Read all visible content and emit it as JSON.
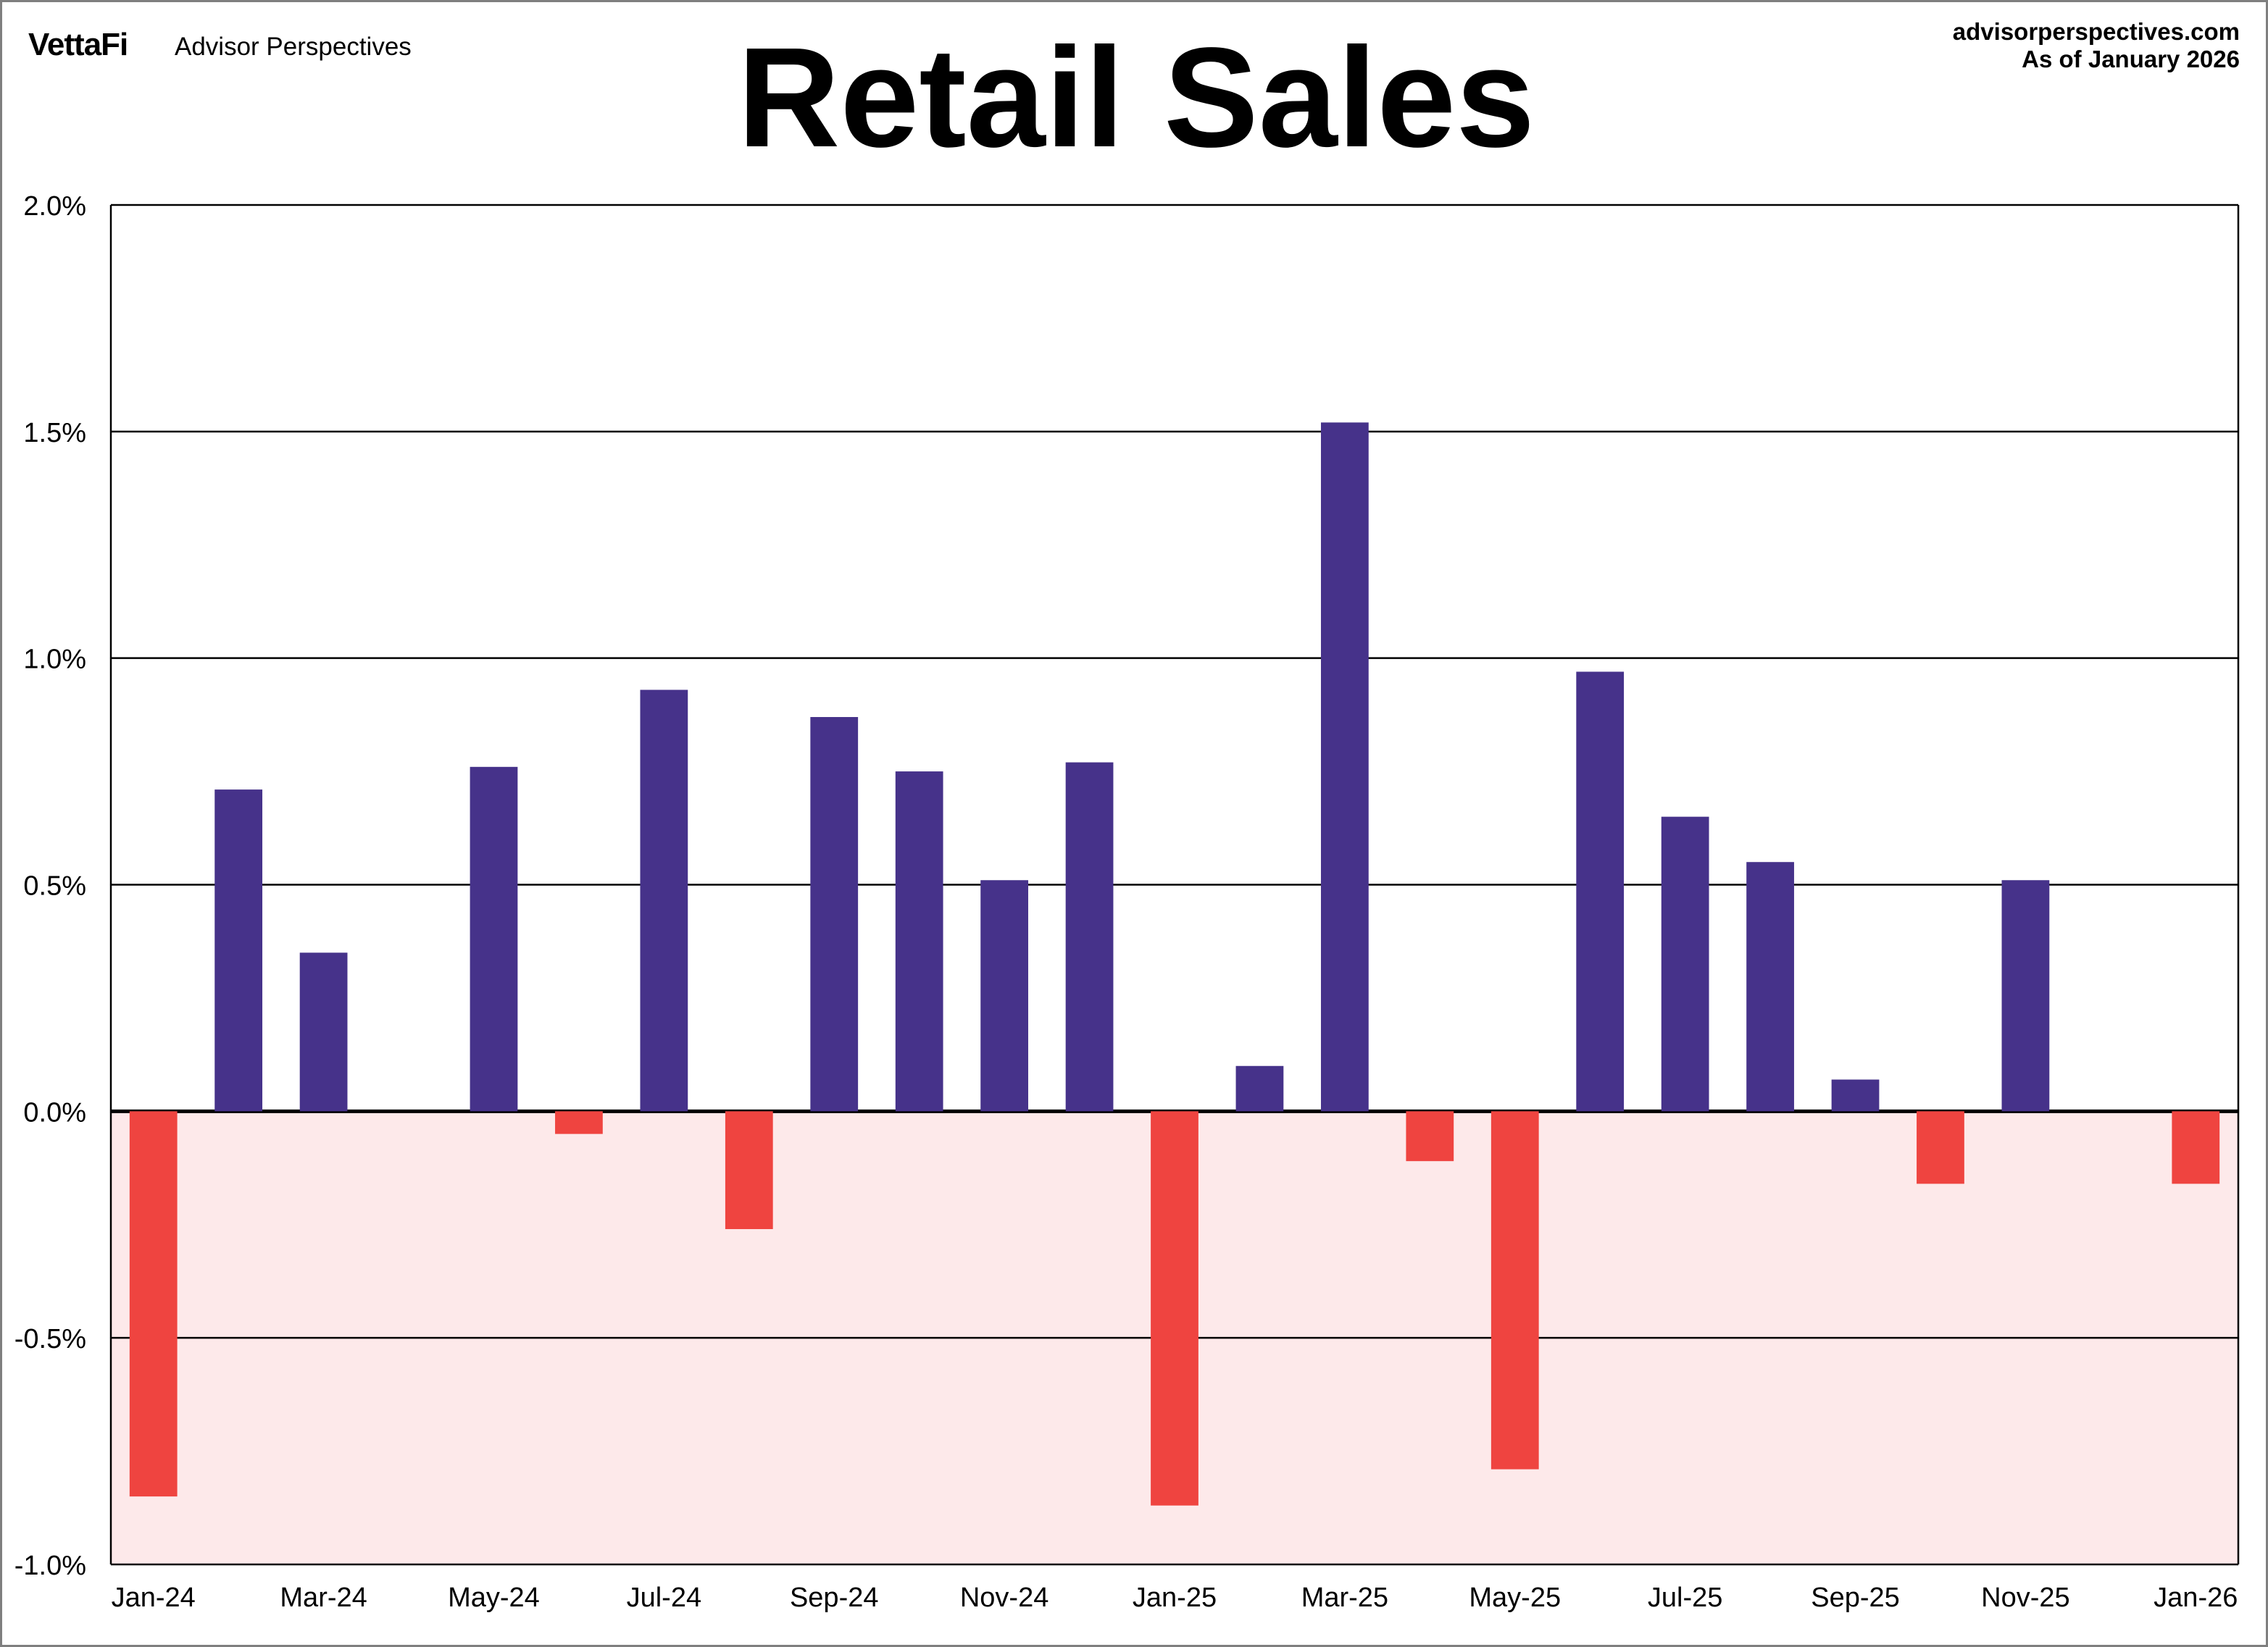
{
  "header": {
    "logo_text": "VettaFi",
    "brand_text": "Advisor Perspectives",
    "site": "advisorperspectives.com",
    "as_of": "As of January 2026"
  },
  "colors": {
    "positive": "#46328a",
    "negative": "#ef4440",
    "negative_region": "#fde9ea",
    "gridline": "#000000"
  },
  "chart_data": {
    "type": "bar",
    "title": "Retail Sales",
    "xlabel": "",
    "ylabel": "",
    "ylim": [
      -1.0,
      2.0
    ],
    "y_ticks": [
      2.0,
      1.5,
      1.0,
      0.5,
      0.0,
      -0.5,
      -1.0
    ],
    "y_tick_labels": [
      "2.0%",
      "1.5%",
      "1.0%",
      "0.5%",
      "0.0%",
      "-0.5%",
      "-1.0%"
    ],
    "grid": true,
    "negative_region_shaded": true,
    "categories": [
      "Jan-24",
      "Feb-24",
      "Mar-24",
      "Apr-24",
      "May-24",
      "Jun-24",
      "Jul-24",
      "Aug-24",
      "Sep-24",
      "Oct-24",
      "Nov-24",
      "Dec-24",
      "Jan-25",
      "Feb-25",
      "Mar-25",
      "Apr-25",
      "May-25",
      "Jun-25",
      "Jul-25",
      "Aug-25",
      "Sep-25",
      "Oct-25",
      "Nov-25",
      "Dec-25",
      "Jan-26"
    ],
    "x_tick_labels": [
      "Jan-24",
      "Mar-24",
      "May-24",
      "Jul-24",
      "Sep-24",
      "Nov-24",
      "Jan-25",
      "Mar-25",
      "May-25",
      "Jul-25",
      "Sep-25",
      "Nov-25",
      "Jan-26"
    ],
    "values": [
      -0.85,
      0.71,
      0.35,
      0.0,
      0.76,
      -0.05,
      0.93,
      -0.26,
      0.87,
      0.75,
      0.51,
      0.77,
      -0.87,
      0.1,
      1.52,
      -0.11,
      -0.79,
      0.97,
      0.65,
      0.55,
      0.07,
      -0.16,
      0.51,
      0.0,
      -0.16
    ]
  }
}
